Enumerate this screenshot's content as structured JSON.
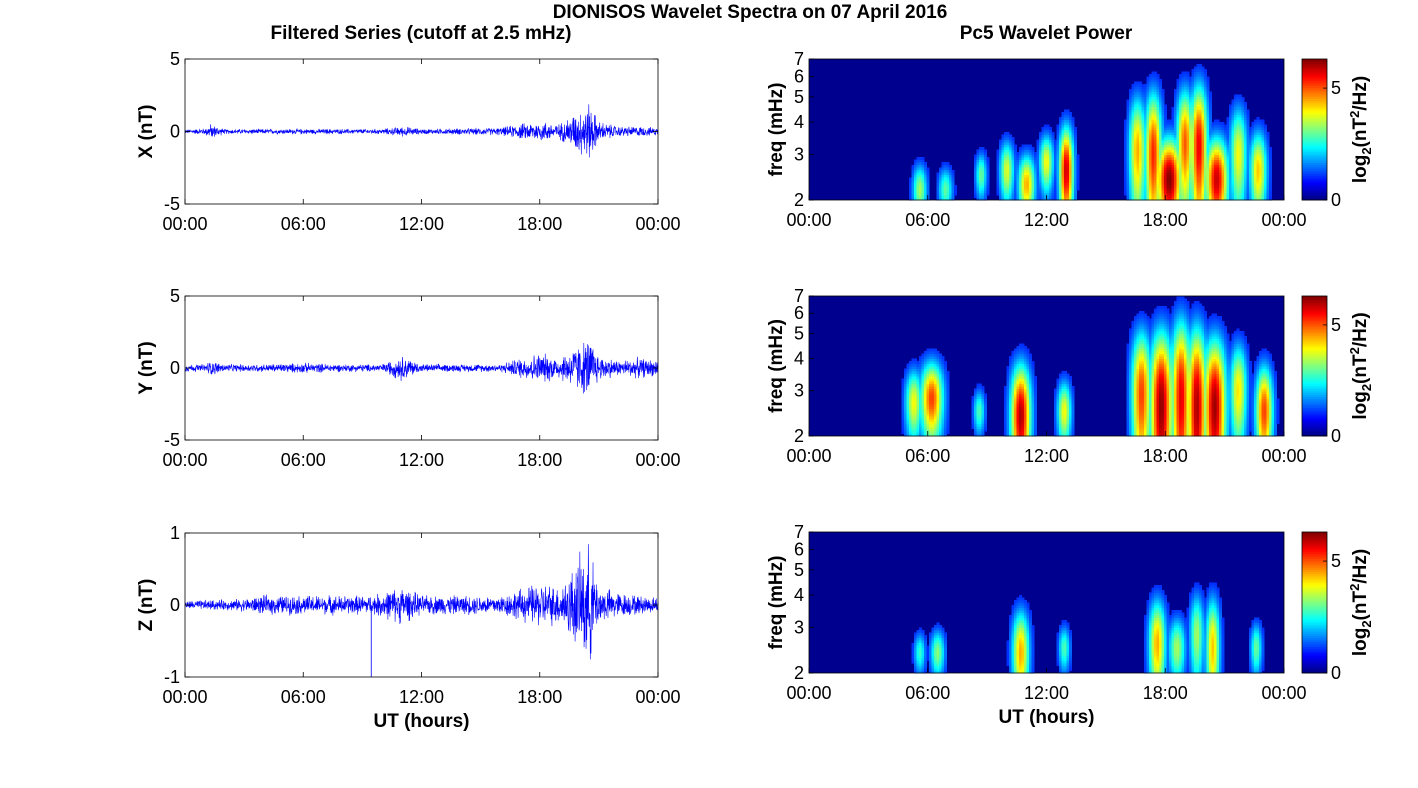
{
  "figure": {
    "title": "DIONISOS Wavelet Spectra on 07 April 2016",
    "left_title": "Filtered Series (cutoff at 2.5 mHz)",
    "right_title": "Pc5 Wavelet Power"
  },
  "colors": {
    "series": "#0000ff",
    "axis": "#000000",
    "background": "#ffffff",
    "spectrum_bg": "#00008f"
  },
  "chart_data": [
    {
      "type": "line",
      "id": "x-series",
      "title": "Filtered Series (cutoff at 2.5 mHz)",
      "xlabel": "",
      "ylabel": "X (nT)",
      "xlim": [
        0,
        24
      ],
      "ylim": [
        -5,
        5
      ],
      "xticks": [
        "00:00",
        "06:00",
        "12:00",
        "18:00",
        "00:00"
      ],
      "yticks": [
        "5",
        "0",
        "-5"
      ],
      "envelope": {
        "hours": [
          0,
          1,
          1.3,
          2,
          4,
          6,
          8,
          10,
          11.1,
          12,
          14,
          16,
          17,
          18,
          19,
          20.5,
          21,
          22,
          23,
          24
        ],
        "amplitude_nT": [
          0.15,
          0.25,
          0.6,
          0.2,
          0.2,
          0.2,
          0.2,
          0.2,
          0.4,
          0.2,
          0.25,
          0.3,
          0.6,
          0.8,
          0.6,
          2.3,
          0.8,
          0.4,
          0.4,
          0.3
        ]
      }
    },
    {
      "type": "line",
      "id": "y-series",
      "xlabel": "",
      "ylabel": "Y (nT)",
      "xlim": [
        0,
        24
      ],
      "ylim": [
        -5,
        5
      ],
      "xticks": [
        "00:00",
        "06:00",
        "12:00",
        "18:00",
        "00:00"
      ],
      "yticks": [
        "5",
        "0",
        "-5"
      ],
      "envelope": {
        "hours": [
          0,
          1,
          1.3,
          2,
          4,
          6,
          8,
          10,
          11,
          12,
          14,
          16,
          17,
          18,
          19,
          20.5,
          21,
          22,
          23,
          24
        ],
        "amplitude_nT": [
          0.3,
          0.3,
          0.6,
          0.3,
          0.3,
          0.4,
          0.3,
          0.3,
          1.0,
          0.3,
          0.3,
          0.3,
          0.8,
          1.2,
          0.9,
          2.4,
          1.0,
          0.6,
          0.8,
          0.6
        ]
      }
    },
    {
      "type": "line",
      "id": "z-series",
      "xlabel": "UT (hours)",
      "ylabel": "Z (nT)",
      "xlim": [
        0,
        24
      ],
      "ylim": [
        -1,
        1
      ],
      "xticks": [
        "00:00",
        "06:00",
        "12:00",
        "18:00",
        "00:00"
      ],
      "yticks": [
        "1",
        "0",
        "-1"
      ],
      "envelope": {
        "hours": [
          0,
          1,
          2,
          3,
          4,
          6,
          8,
          9.5,
          11,
          12,
          14,
          16,
          17,
          18,
          19,
          20.5,
          21,
          22,
          23,
          24
        ],
        "amplitude_nT": [
          0.06,
          0.08,
          0.08,
          0.1,
          0.15,
          0.15,
          0.15,
          0.15,
          0.3,
          0.15,
          0.15,
          0.15,
          0.25,
          0.35,
          0.3,
          0.95,
          0.3,
          0.2,
          0.15,
          0.12
        ]
      }
    },
    {
      "type": "heatmap",
      "id": "x-spectrum",
      "title": "Pc5 Wavelet Power",
      "xlabel": "",
      "ylabel": "freq (mHz)",
      "xlim": [
        0,
        24
      ],
      "ylim": [
        2,
        7
      ],
      "yscale": "log",
      "xticks": [
        "00:00",
        "06:00",
        "12:00",
        "18:00",
        "00:00"
      ],
      "yticks": [
        "2",
        "3",
        "4",
        "5",
        "6",
        "7"
      ],
      "colorbar": {
        "label": "log2(nT^2/Hz)",
        "label_base": "log",
        "label_sub": "2",
        "label_mid": "(nT",
        "label_sup": "2",
        "label_end": "/Hz)",
        "range": [
          0,
          6.3
        ],
        "ticks": [
          "0",
          "5"
        ]
      },
      "blobs": [
        {
          "t": 5.6,
          "f": 2.2,
          "df": 0.35,
          "dt": 0.25,
          "p": 3.0
        },
        {
          "t": 6.9,
          "f": 2.2,
          "df": 0.3,
          "dt": 0.25,
          "p": 2.5
        },
        {
          "t": 8.7,
          "f": 2.5,
          "df": 0.35,
          "dt": 0.2,
          "p": 2.6
        },
        {
          "t": 10.0,
          "f": 2.6,
          "df": 0.5,
          "dt": 0.25,
          "p": 3.4
        },
        {
          "t": 11.0,
          "f": 2.3,
          "df": 0.45,
          "dt": 0.3,
          "p": 4.2
        },
        {
          "t": 12.0,
          "f": 2.8,
          "df": 0.5,
          "dt": 0.25,
          "p": 3.6
        },
        {
          "t": 13.0,
          "f": 2.6,
          "df": 0.8,
          "dt": 0.25,
          "p": 5.8
        },
        {
          "t": 16.6,
          "f": 3.1,
          "df": 1.2,
          "dt": 0.3,
          "p": 4.2
        },
        {
          "t": 17.4,
          "f": 3.0,
          "df": 1.4,
          "dt": 0.3,
          "p": 5.2
        },
        {
          "t": 18.2,
          "f": 2.4,
          "df": 0.7,
          "dt": 0.45,
          "p": 6.3
        },
        {
          "t": 19.0,
          "f": 3.3,
          "df": 1.3,
          "dt": 0.3,
          "p": 4.8
        },
        {
          "t": 19.7,
          "f": 3.2,
          "df": 1.5,
          "dt": 0.3,
          "p": 5.6
        },
        {
          "t": 20.6,
          "f": 2.4,
          "df": 0.7,
          "dt": 0.4,
          "p": 5.8
        },
        {
          "t": 21.7,
          "f": 3.0,
          "df": 1.0,
          "dt": 0.3,
          "p": 3.6
        },
        {
          "t": 22.7,
          "f": 2.6,
          "df": 0.7,
          "dt": 0.3,
          "p": 4.0
        }
      ]
    },
    {
      "type": "heatmap",
      "id": "y-spectrum",
      "xlabel": "",
      "ylabel": "freq (mHz)",
      "xlim": [
        0,
        24
      ],
      "ylim": [
        2,
        7
      ],
      "yscale": "log",
      "xticks": [
        "00:00",
        "06:00",
        "12:00",
        "18:00",
        "00:00"
      ],
      "yticks": [
        "2",
        "3",
        "4",
        "5",
        "6",
        "7"
      ],
      "colorbar": {
        "label": "log2(nT^2/Hz)",
        "label_base": "log",
        "label_sub": "2",
        "label_mid": "(nT",
        "label_sup": "2",
        "label_end": "/Hz)",
        "range": [
          0,
          6.3
        ],
        "ticks": [
          "0",
          "5"
        ]
      },
      "blobs": [
        {
          "t": 5.3,
          "f": 2.7,
          "df": 0.6,
          "dt": 0.3,
          "p": 3.6
        },
        {
          "t": 6.2,
          "f": 2.8,
          "df": 0.7,
          "dt": 0.4,
          "p": 5.0
        },
        {
          "t": 8.6,
          "f": 2.5,
          "df": 0.35,
          "dt": 0.2,
          "p": 2.4
        },
        {
          "t": 10.7,
          "f": 2.4,
          "df": 0.9,
          "dt": 0.35,
          "p": 6.0
        },
        {
          "t": 12.9,
          "f": 2.5,
          "df": 0.5,
          "dt": 0.25,
          "p": 3.6
        },
        {
          "t": 16.8,
          "f": 2.9,
          "df": 1.4,
          "dt": 0.35,
          "p": 5.0
        },
        {
          "t": 17.8,
          "f": 2.6,
          "df": 1.6,
          "dt": 0.4,
          "p": 6.2
        },
        {
          "t": 18.8,
          "f": 2.8,
          "df": 1.8,
          "dt": 0.35,
          "p": 5.6
        },
        {
          "t": 19.6,
          "f": 2.6,
          "df": 1.7,
          "dt": 0.35,
          "p": 6.0
        },
        {
          "t": 20.5,
          "f": 2.6,
          "df": 1.4,
          "dt": 0.4,
          "p": 6.1
        },
        {
          "t": 21.7,
          "f": 3.0,
          "df": 1.0,
          "dt": 0.3,
          "p": 3.8
        },
        {
          "t": 23.0,
          "f": 2.5,
          "df": 0.8,
          "dt": 0.3,
          "p": 5.0
        }
      ]
    },
    {
      "type": "heatmap",
      "id": "z-spectrum",
      "xlabel": "UT (hours)",
      "ylabel": "freq (mHz)",
      "xlim": [
        0,
        24
      ],
      "ylim": [
        2,
        7
      ],
      "yscale": "log",
      "xticks": [
        "00:00",
        "06:00",
        "12:00",
        "18:00",
        "00:00"
      ],
      "yticks": [
        "2",
        "3",
        "4",
        "5",
        "6",
        "7"
      ],
      "colorbar": {
        "label": "log2(nT^2/Hz)",
        "label_base": "log",
        "label_sub": "2",
        "label_mid": "(nT",
        "label_sup": "2",
        "label_end": "/Hz)",
        "range": [
          0,
          6.3
        ],
        "ticks": [
          "0",
          "5"
        ]
      },
      "blobs": [
        {
          "t": 5.6,
          "f": 2.4,
          "df": 0.3,
          "dt": 0.2,
          "p": 2.2
        },
        {
          "t": 6.5,
          "f": 2.4,
          "df": 0.35,
          "dt": 0.25,
          "p": 2.8
        },
        {
          "t": 10.7,
          "f": 2.4,
          "df": 0.7,
          "dt": 0.3,
          "p": 4.2
        },
        {
          "t": 12.9,
          "f": 2.5,
          "df": 0.35,
          "dt": 0.2,
          "p": 2.4
        },
        {
          "t": 17.6,
          "f": 2.6,
          "df": 0.8,
          "dt": 0.3,
          "p": 4.2
        },
        {
          "t": 18.6,
          "f": 2.5,
          "df": 0.5,
          "dt": 0.3,
          "p": 3.0
        },
        {
          "t": 19.6,
          "f": 2.8,
          "df": 0.8,
          "dt": 0.25,
          "p": 3.0
        },
        {
          "t": 20.4,
          "f": 2.5,
          "df": 0.9,
          "dt": 0.25,
          "p": 4.0
        },
        {
          "t": 22.6,
          "f": 2.5,
          "df": 0.4,
          "dt": 0.2,
          "p": 2.6
        }
      ]
    }
  ]
}
